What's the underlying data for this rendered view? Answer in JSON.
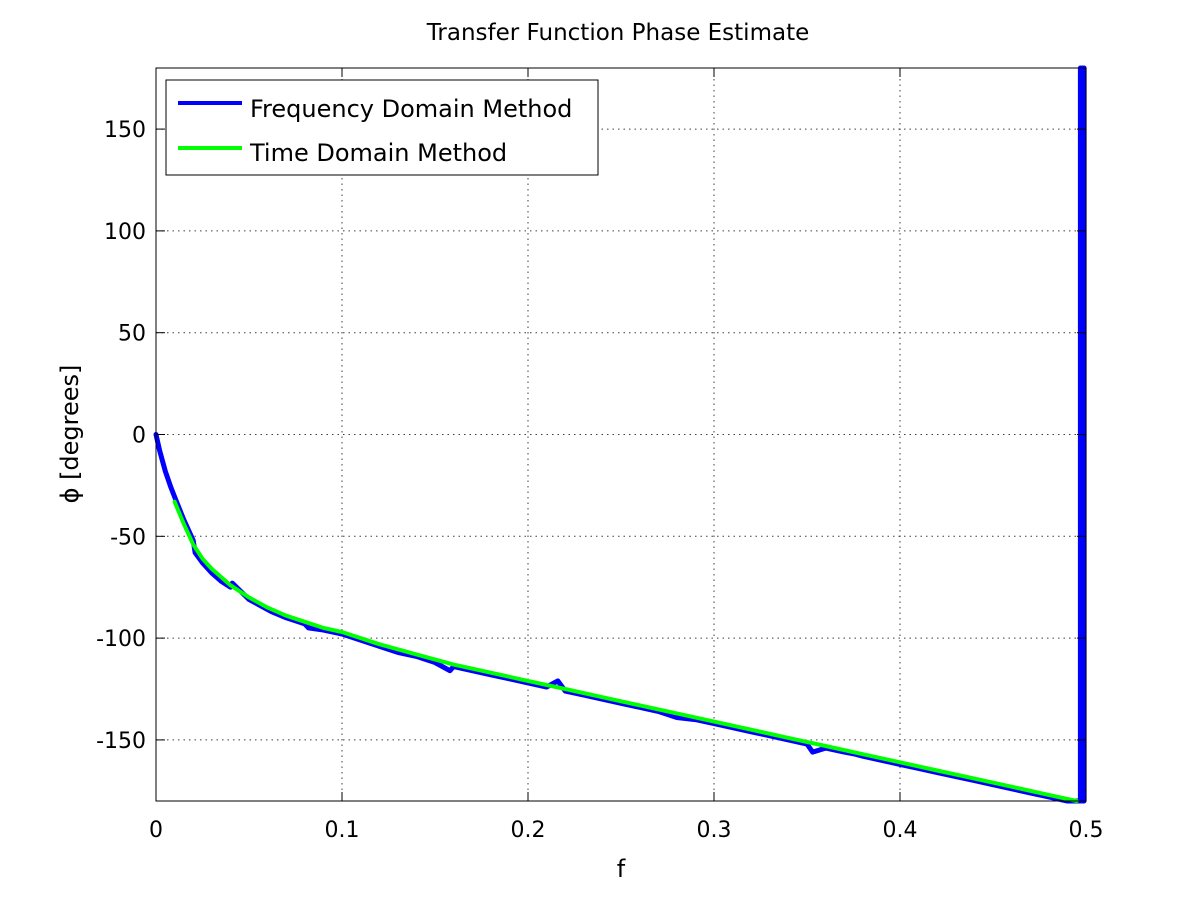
{
  "chart_data": {
    "type": "line",
    "title": "Transfer Function Phase Estimate",
    "xlabel": "f",
    "ylabel": "ϕ [degrees]",
    "xlim": [
      0,
      0.5
    ],
    "ylim": [
      -180,
      180
    ],
    "xticks": [
      0,
      0.1,
      0.2,
      0.3,
      0.4,
      0.5
    ],
    "xtick_labels": [
      "0",
      "0.1",
      "0.2",
      "0.3",
      "0.4",
      "0.5"
    ],
    "yticks": [
      150,
      100,
      50,
      0,
      -50,
      -100,
      -150
    ],
    "ytick_labels": [
      "150",
      "100",
      "50",
      "0",
      "-50",
      "-100",
      "-150"
    ],
    "grid": true,
    "legend_position": "top-left",
    "series": [
      {
        "name": "Frequency Domain Method",
        "color": "#0000ff",
        "x": [
          0,
          0.002,
          0.005,
          0.008,
          0.011,
          0.015,
          0.02,
          0.021,
          0.025,
          0.03,
          0.035,
          0.04,
          0.041,
          0.05,
          0.06,
          0.062,
          0.07,
          0.08,
          0.082,
          0.09,
          0.1,
          0.11,
          0.12,
          0.13,
          0.14,
          0.15,
          0.158,
          0.16,
          0.17,
          0.18,
          0.19,
          0.2,
          0.21,
          0.216,
          0.22,
          0.23,
          0.24,
          0.25,
          0.26,
          0.27,
          0.28,
          0.29,
          0.3,
          0.31,
          0.32,
          0.33,
          0.34,
          0.35,
          0.353,
          0.36,
          0.37,
          0.376,
          0.38,
          0.39,
          0.4,
          0.41,
          0.42,
          0.43,
          0.44,
          0.45,
          0.46,
          0.47,
          0.48,
          0.49,
          0.497,
          0.497,
          0.498,
          0.498,
          0.499,
          0.499
        ],
        "y": [
          0,
          -8,
          -18,
          -26,
          -33,
          -42,
          -52,
          -58,
          -63,
          -68,
          -72,
          -75,
          -73,
          -81,
          -86,
          -87,
          -90,
          -93,
          -95,
          -96,
          -98,
          -101,
          -104,
          -107,
          -109,
          -112,
          -116,
          -114,
          -116,
          -118,
          -120,
          -122,
          -124,
          -121,
          -126,
          -128,
          -130,
          -132,
          -134,
          -136,
          -139,
          -140,
          -142,
          -144,
          -146,
          -148,
          -150,
          -152,
          -156,
          -154,
          -156,
          -157,
          -158,
          -160,
          -162,
          -164,
          -166,
          -168,
          -170,
          -172,
          -174,
          -176,
          -178,
          -180,
          -180,
          180,
          -180,
          180,
          -180,
          180
        ]
      },
      {
        "name": "Time Domain Method",
        "color": "#00ff00",
        "x": [
          0.01,
          0.015,
          0.02,
          0.025,
          0.03,
          0.035,
          0.04,
          0.05,
          0.06,
          0.07,
          0.08,
          0.09,
          0.1,
          0.12,
          0.14,
          0.16,
          0.18,
          0.2,
          0.22,
          0.24,
          0.26,
          0.28,
          0.3,
          0.32,
          0.34,
          0.36,
          0.38,
          0.4,
          0.42,
          0.44,
          0.46,
          0.48,
          0.495
        ],
        "y": [
          -33,
          -44,
          -54,
          -61,
          -66,
          -70,
          -74,
          -80,
          -85,
          -89,
          -92,
          -95,
          -97,
          -103,
          -108,
          -113,
          -117,
          -121,
          -125,
          -129,
          -133,
          -137,
          -141,
          -145,
          -149,
          -153,
          -157,
          -161,
          -165,
          -169,
          -173,
          -177,
          -180
        ]
      }
    ]
  }
}
